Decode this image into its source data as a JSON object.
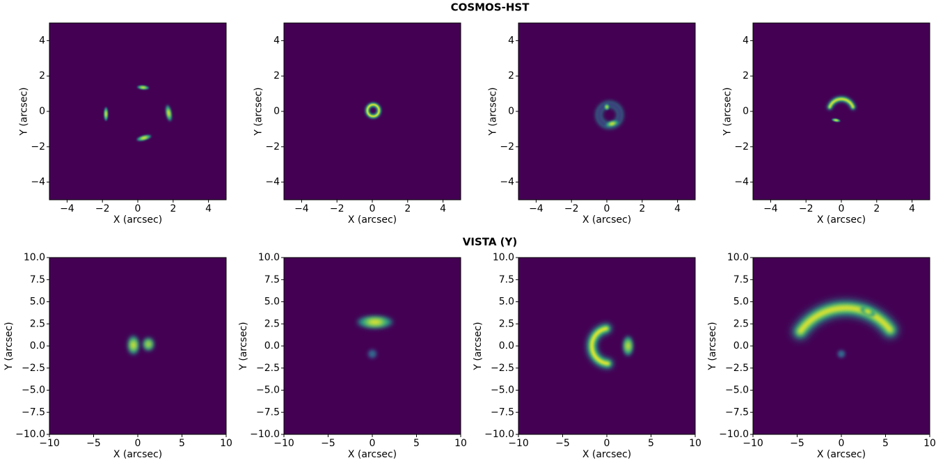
{
  "chart_data": [
    {
      "type": "image",
      "title": "COSMOS-HST",
      "xlabel": "X (arcsec)",
      "ylabel": "Y (arcsec)",
      "background": "#440154",
      "colors": [
        "#3b528b",
        "#21918c",
        "#5ec962",
        "#fde725"
      ],
      "xlim": [
        -5,
        5
      ],
      "ylim": [
        -5,
        5
      ],
      "xticks": [
        {
          "value": -4,
          "label": "−4"
        },
        {
          "value": -2,
          "label": "−2"
        },
        0,
        2,
        4
      ],
      "yticks": [
        {
          "value": -4,
          "label": "−4"
        },
        {
          "value": -2,
          "label": "−2"
        },
        0,
        2,
        4
      ],
      "features": [
        {
          "x": 0.3,
          "y": 1.35,
          "rx": 0.3,
          "ry": 0.1,
          "angle": -5,
          "peak": 0.8
        },
        {
          "x": -1.8,
          "y": -0.15,
          "rx": 0.1,
          "ry": 0.35,
          "angle": 0,
          "peak": 0.8
        },
        {
          "x": 1.75,
          "y": -0.1,
          "rx": 0.13,
          "ry": 0.42,
          "angle": 10,
          "peak": 1
        },
        {
          "x": 0.35,
          "y": -1.5,
          "rx": 0.38,
          "ry": 0.12,
          "angle": 15,
          "peak": 0.9
        }
      ]
    },
    {
      "type": "image",
      "xlabel": "X (arcsec)",
      "ylabel": "Y (arcsec)",
      "background": "#440154",
      "colors": [
        "#3b528b",
        "#21918c",
        "#5ec962",
        "#fde725"
      ],
      "xlim": [
        -5,
        5
      ],
      "ylim": [
        -5,
        5
      ],
      "xticks": [
        {
          "value": -4,
          "label": "−4"
        },
        {
          "value": -2,
          "label": "−2"
        },
        0,
        2,
        4
      ],
      "yticks": [
        {
          "value": -4,
          "label": "−4"
        },
        {
          "value": -2,
          "label": "−2"
        },
        0,
        2,
        4
      ],
      "arcs": [
        {
          "cx": 0.05,
          "cy": 0.05,
          "r": 0.33,
          "a1": 0,
          "a2": 360,
          "w": 0.16,
          "peak": 0.9
        }
      ]
    },
    {
      "type": "image",
      "xlabel": "X (arcsec)",
      "ylabel": "Y (arcsec)",
      "background": "#440154",
      "colors": [
        "#3b528b",
        "#21918c",
        "#5ec962",
        "#fde725"
      ],
      "xlim": [
        -5,
        5
      ],
      "ylim": [
        -5,
        5
      ],
      "xticks": [
        {
          "value": -4,
          "label": "−4"
        },
        {
          "value": -2,
          "label": "−2"
        },
        0,
        2,
        4
      ],
      "yticks": [
        {
          "value": -4,
          "label": "−4"
        },
        {
          "value": -2,
          "label": "−2"
        },
        0,
        2,
        4
      ],
      "arcs": [
        {
          "cx": 0.15,
          "cy": -0.2,
          "r": 0.6,
          "a1": 0,
          "a2": 360,
          "w": 0.25,
          "peak": 0.4
        }
      ],
      "features": [
        {
          "x": 0.3,
          "y": -0.7,
          "rx": 0.35,
          "ry": 0.13,
          "angle": 15,
          "peak": 1
        },
        {
          "x": 0.0,
          "y": 0.25,
          "rx": 0.12,
          "ry": 0.15,
          "angle": 0,
          "peak": 0.7
        }
      ]
    },
    {
      "type": "image",
      "xlabel": "X (arcsec)",
      "ylabel": "Y (arcsec)",
      "background": "#440154",
      "colors": [
        "#3b528b",
        "#21918c",
        "#5ec962",
        "#fde725"
      ],
      "xlim": [
        -5,
        5
      ],
      "ylim": [
        -5,
        5
      ],
      "xticks": [
        {
          "value": -4,
          "label": "−4"
        },
        {
          "value": -2,
          "label": "−2"
        },
        0,
        2,
        4
      ],
      "yticks": [
        {
          "value": -4,
          "label": "−4"
        },
        {
          "value": -2,
          "label": "−2"
        },
        0,
        2,
        4
      ],
      "arcs": [
        {
          "cx": 0.0,
          "cy": 0.0,
          "r": 0.7,
          "a1": 20,
          "a2": 160,
          "w": 0.2,
          "peak": 1
        }
      ],
      "features": [
        {
          "x": -0.3,
          "y": -0.5,
          "rx": 0.22,
          "ry": 0.08,
          "angle": -10,
          "peak": 0.8
        }
      ]
    },
    {
      "type": "image",
      "title": "VISTA (Y)",
      "xlabel": "X (arcsec)",
      "ylabel": "Y (arcsec)",
      "background": "#440154",
      "colors": [
        "#3b528b",
        "#21918c",
        "#5ec962",
        "#fde725"
      ],
      "xlim": [
        -10,
        10
      ],
      "ylim": [
        -10,
        10
      ],
      "xticks": [
        {
          "value": -10,
          "label": "−10"
        },
        {
          "value": -5,
          "label": "−5"
        },
        0,
        5,
        10
      ],
      "yticks": [
        {
          "value": -10,
          "label": "−10.0"
        },
        {
          "value": -7.5,
          "label": "−7.5"
        },
        {
          "value": -5,
          "label": "−5.0"
        },
        {
          "value": -2.5,
          "label": "−2.5"
        },
        {
          "value": 0,
          "label": "0.0"
        },
        2.5,
        {
          "value": 5,
          "label": "5.0"
        },
        7.5,
        {
          "value": 10,
          "label": "10.0"
        }
      ],
      "features": [
        {
          "x": -0.5,
          "y": 0.1,
          "rx": 0.55,
          "ry": 0.95,
          "angle": 0,
          "peak": 1
        },
        {
          "x": 1.2,
          "y": 0.2,
          "rx": 0.55,
          "ry": 0.65,
          "angle": 0,
          "peak": 0.8
        }
      ]
    },
    {
      "type": "image",
      "xlabel": "X (arcsec)",
      "ylabel": "Y (arcsec)",
      "background": "#440154",
      "colors": [
        "#3b528b",
        "#21918c",
        "#5ec962",
        "#fde725"
      ],
      "xlim": [
        -10,
        10
      ],
      "ylim": [
        -10,
        10
      ],
      "xticks": [
        {
          "value": -10,
          "label": "−10"
        },
        {
          "value": -5,
          "label": "−5"
        },
        0,
        5,
        10
      ],
      "yticks": [
        {
          "value": -10,
          "label": "−10.0"
        },
        {
          "value": -7.5,
          "label": "−7.5"
        },
        {
          "value": -5,
          "label": "−5.0"
        },
        {
          "value": -2.5,
          "label": "−2.5"
        },
        {
          "value": 0,
          "label": "0.0"
        },
        2.5,
        {
          "value": 5,
          "label": "5.0"
        },
        7.5,
        {
          "value": 10,
          "label": "10.0"
        }
      ],
      "features": [
        {
          "x": 0.3,
          "y": 2.7,
          "rx": 1.8,
          "ry": 0.6,
          "angle": 0,
          "peak": 1
        },
        {
          "x": 0.0,
          "y": -0.9,
          "rx": 0.45,
          "ry": 0.45,
          "angle": 0,
          "peak": 0.3
        }
      ]
    },
    {
      "type": "image",
      "xlabel": "X (arcsec)",
      "ylabel": "Y (arcsec)",
      "background": "#440154",
      "colors": [
        "#3b528b",
        "#21918c",
        "#5ec962",
        "#fde725"
      ],
      "xlim": [
        -10,
        10
      ],
      "ylim": [
        -10,
        10
      ],
      "xticks": [
        {
          "value": -10,
          "label": "−10"
        },
        {
          "value": -5,
          "label": "−5"
        },
        0,
        5,
        10
      ],
      "yticks": [
        {
          "value": -10,
          "label": "−10.0"
        },
        {
          "value": -7.5,
          "label": "−7.5"
        },
        {
          "value": -5,
          "label": "−5.0"
        },
        {
          "value": -2.5,
          "label": "−2.5"
        },
        {
          "value": 0,
          "label": "0.0"
        },
        2.5,
        {
          "value": 5,
          "label": "5.0"
        },
        7.5,
        {
          "value": 10,
          "label": "10.0"
        }
      ],
      "arcs": [
        {
          "cx": 0.3,
          "cy": 0.0,
          "r": 2.0,
          "a1": 100,
          "a2": 265,
          "w": 0.75,
          "peak": 1
        }
      ],
      "features": [
        {
          "x": 2.4,
          "y": 0.0,
          "rx": 0.5,
          "ry": 1.0,
          "angle": 0,
          "peak": 0.8
        }
      ]
    },
    {
      "type": "image",
      "xlabel": "X (arcsec)",
      "ylabel": "Y (arcsec)",
      "background": "#440154",
      "colors": [
        "#3b528b",
        "#21918c",
        "#5ec962",
        "#fde725"
      ],
      "xlim": [
        -10,
        10
      ],
      "ylim": [
        -10,
        10
      ],
      "xticks": [
        {
          "value": -10,
          "label": "−10"
        },
        {
          "value": -5,
          "label": "−5"
        },
        0,
        5,
        10
      ],
      "yticks": [
        {
          "value": -10,
          "label": "−10.0"
        },
        {
          "value": -7.5,
          "label": "−7.5"
        },
        {
          "value": -5,
          "label": "−5.0"
        },
        {
          "value": -2.5,
          "label": "−2.5"
        },
        {
          "value": 0,
          "label": "0.0"
        },
        2.5,
        {
          "value": 5,
          "label": "5.0"
        },
        7.5,
        {
          "value": 10,
          "label": "10.0"
        }
      ],
      "arcs": [
        {
          "cx": 0.5,
          "cy": -2.0,
          "r": 6.3,
          "a1": 37,
          "a2": 145,
          "w": 1.1,
          "peak": 0.9
        }
      ],
      "features": [
        {
          "x": 3.0,
          "y": 3.9,
          "rx": 0.8,
          "ry": 0.4,
          "angle": -25,
          "peak": 1
        },
        {
          "x": 0.0,
          "y": -0.9,
          "rx": 0.4,
          "ry": 0.4,
          "angle": 0,
          "peak": 0.3
        }
      ]
    }
  ]
}
